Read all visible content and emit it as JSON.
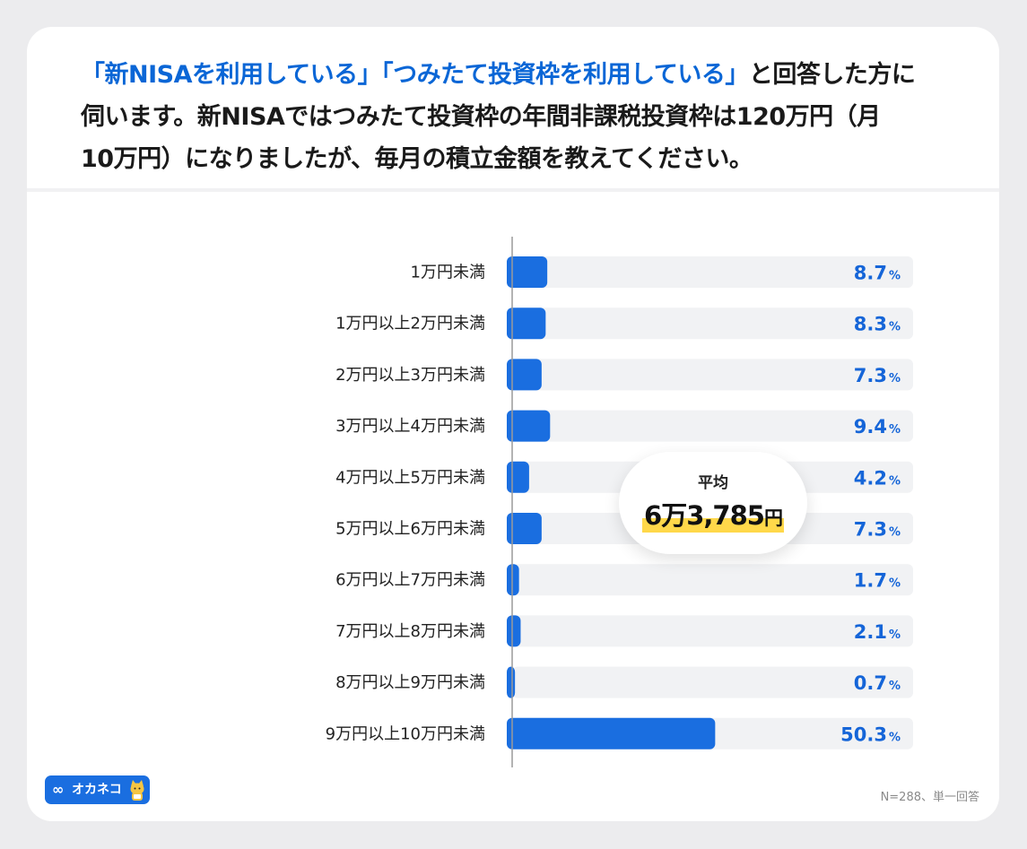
{
  "question": {
    "part1": "「新NISAを利用している」「つみたて投資枠を利用している」",
    "part2": "と回答した方に",
    "line2": "伺います。新NISAではつみたて投資枠の年間非課税投資枠は120万円（月",
    "line3": "10万円）になりましたが、毎月の積立金額を教えてください。"
  },
  "average": {
    "label": "平均",
    "value": "6万3,785",
    "unit": "円"
  },
  "logo": {
    "text": "オカネコ"
  },
  "footnote": "N=288、単一回答",
  "colors": {
    "bar": "#1a6ee0",
    "track": "#f1f2f4",
    "value_text": "#1565d8",
    "highlight": "#ffd84a"
  },
  "chart_data": {
    "type": "bar",
    "orientation": "horizontal",
    "categories": [
      "1万円未満",
      "1万円以上2万円未満",
      "2万円以上3万円未満",
      "3万円以上4万円未満",
      "4万円以上5万円未満",
      "5万円以上6万円未満",
      "6万円以上7万円未満",
      "7万円以上8万円未満",
      "8万円以上9万円未満",
      "9万円以上10万円未満"
    ],
    "values": [
      8.7,
      8.3,
      7.3,
      9.4,
      4.2,
      7.3,
      1.7,
      2.1,
      0.7,
      50.3
    ],
    "value_labels": [
      "8.7",
      "8.3",
      "7.3",
      "9.4",
      "4.2",
      "7.3",
      "1.7",
      "2.1",
      "0.7",
      "50.3"
    ],
    "unit": "%",
    "xlim": [
      0,
      100
    ],
    "grid": false
  }
}
